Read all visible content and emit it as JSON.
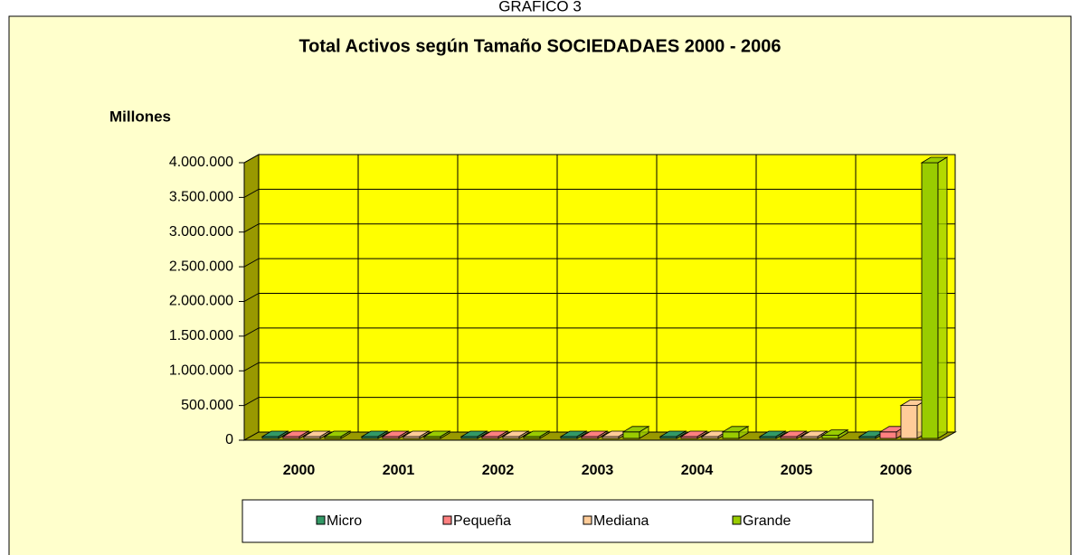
{
  "caption": "GRAFICO 3",
  "chart_data": {
    "type": "bar3d",
    "title": "Total Activos según Tamaño SOCIEDADAES 2000 - 2006",
    "ylabel": "Millones",
    "categories": [
      "2000",
      "2001",
      "2002",
      "2003",
      "2004",
      "2005",
      "2006"
    ],
    "series": [
      {
        "name": "Micro",
        "color": "#339966",
        "values": [
          10000,
          10000,
          10000,
          10000,
          10000,
          10000,
          10000
        ]
      },
      {
        "name": "Pequeña",
        "color": "#ff8080",
        "values": [
          20000,
          20000,
          20000,
          20000,
          20000,
          20000,
          120000
        ]
      },
      {
        "name": "Mediana",
        "color": "#ffcc99",
        "values": [
          30000,
          30000,
          30000,
          40000,
          50000,
          30000,
          500000
        ]
      },
      {
        "name": "Grande",
        "color": "#99cc00",
        "values": [
          20000,
          20000,
          30000,
          120000,
          120000,
          70000,
          4000000
        ]
      }
    ],
    "ylim": [
      0,
      4000000
    ],
    "yticks": [
      0,
      {
        "value": 500000,
        "label": "500.000"
      },
      {
        "value": 1000000,
        "label": "1.000.000"
      },
      {
        "value": 1500000,
        "label": "1.500.000"
      },
      {
        "value": 2000000,
        "label": "2.000.000"
      },
      {
        "value": 2500000,
        "label": "2.500.000"
      },
      {
        "value": 3000000,
        "label": "3.000.000"
      },
      {
        "value": 3500000,
        "label": "3.500.000"
      },
      {
        "value": 4000000,
        "label": "4.000.000"
      }
    ],
    "grid": true,
    "legend": "bottom"
  }
}
